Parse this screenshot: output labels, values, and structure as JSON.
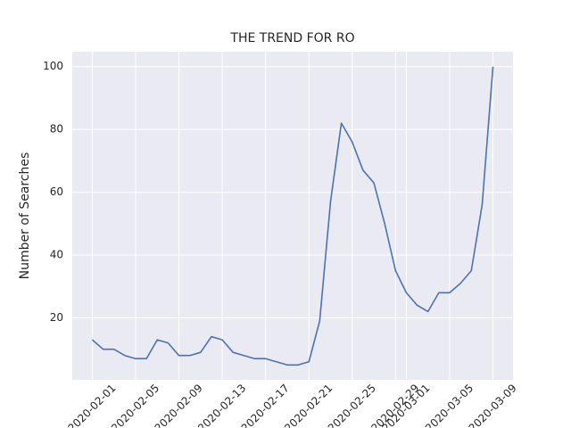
{
  "chart_data": {
    "type": "line",
    "title": "THE TREND FOR RO",
    "y_label": "Number of Searches",
    "x": [
      "2020-02-01",
      "2020-02-02",
      "2020-02-03",
      "2020-02-04",
      "2020-02-05",
      "2020-02-06",
      "2020-02-07",
      "2020-02-08",
      "2020-02-09",
      "2020-02-10",
      "2020-02-11",
      "2020-02-12",
      "2020-02-13",
      "2020-02-14",
      "2020-02-15",
      "2020-02-16",
      "2020-02-17",
      "2020-02-18",
      "2020-02-19",
      "2020-02-20",
      "2020-02-21",
      "2020-02-22",
      "2020-02-23",
      "2020-02-24",
      "2020-02-25",
      "2020-02-26",
      "2020-02-27",
      "2020-02-28",
      "2020-02-29",
      "2020-03-01",
      "2020-03-02",
      "2020-03-03",
      "2020-03-04",
      "2020-03-05",
      "2020-03-06",
      "2020-03-07",
      "2020-03-08",
      "2020-03-09"
    ],
    "values": [
      13,
      10,
      10,
      8,
      7,
      7,
      13,
      12,
      8,
      8,
      9,
      14,
      13,
      9,
      8,
      7,
      7,
      6,
      5,
      5,
      6,
      19,
      57,
      82,
      76,
      67,
      63,
      50,
      35,
      28,
      24,
      22,
      28,
      28,
      31,
      35,
      56,
      100
    ],
    "color": "#4c72b0",
    "xlim": [
      "2020-01-30T03:36",
      "2020-03-10T20:24"
    ],
    "xticks": [
      "2020-02-01",
      "2020-02-05",
      "2020-02-09",
      "2020-02-13",
      "2020-02-17",
      "2020-02-21",
      "2020-02-25",
      "2020-02-29",
      "2020-03-01",
      "2020-03-05",
      "2020-03-09"
    ],
    "ylim": [
      0.25,
      104.75
    ],
    "yticks": [
      20,
      40,
      60,
      80,
      100
    ],
    "grid": true
  }
}
